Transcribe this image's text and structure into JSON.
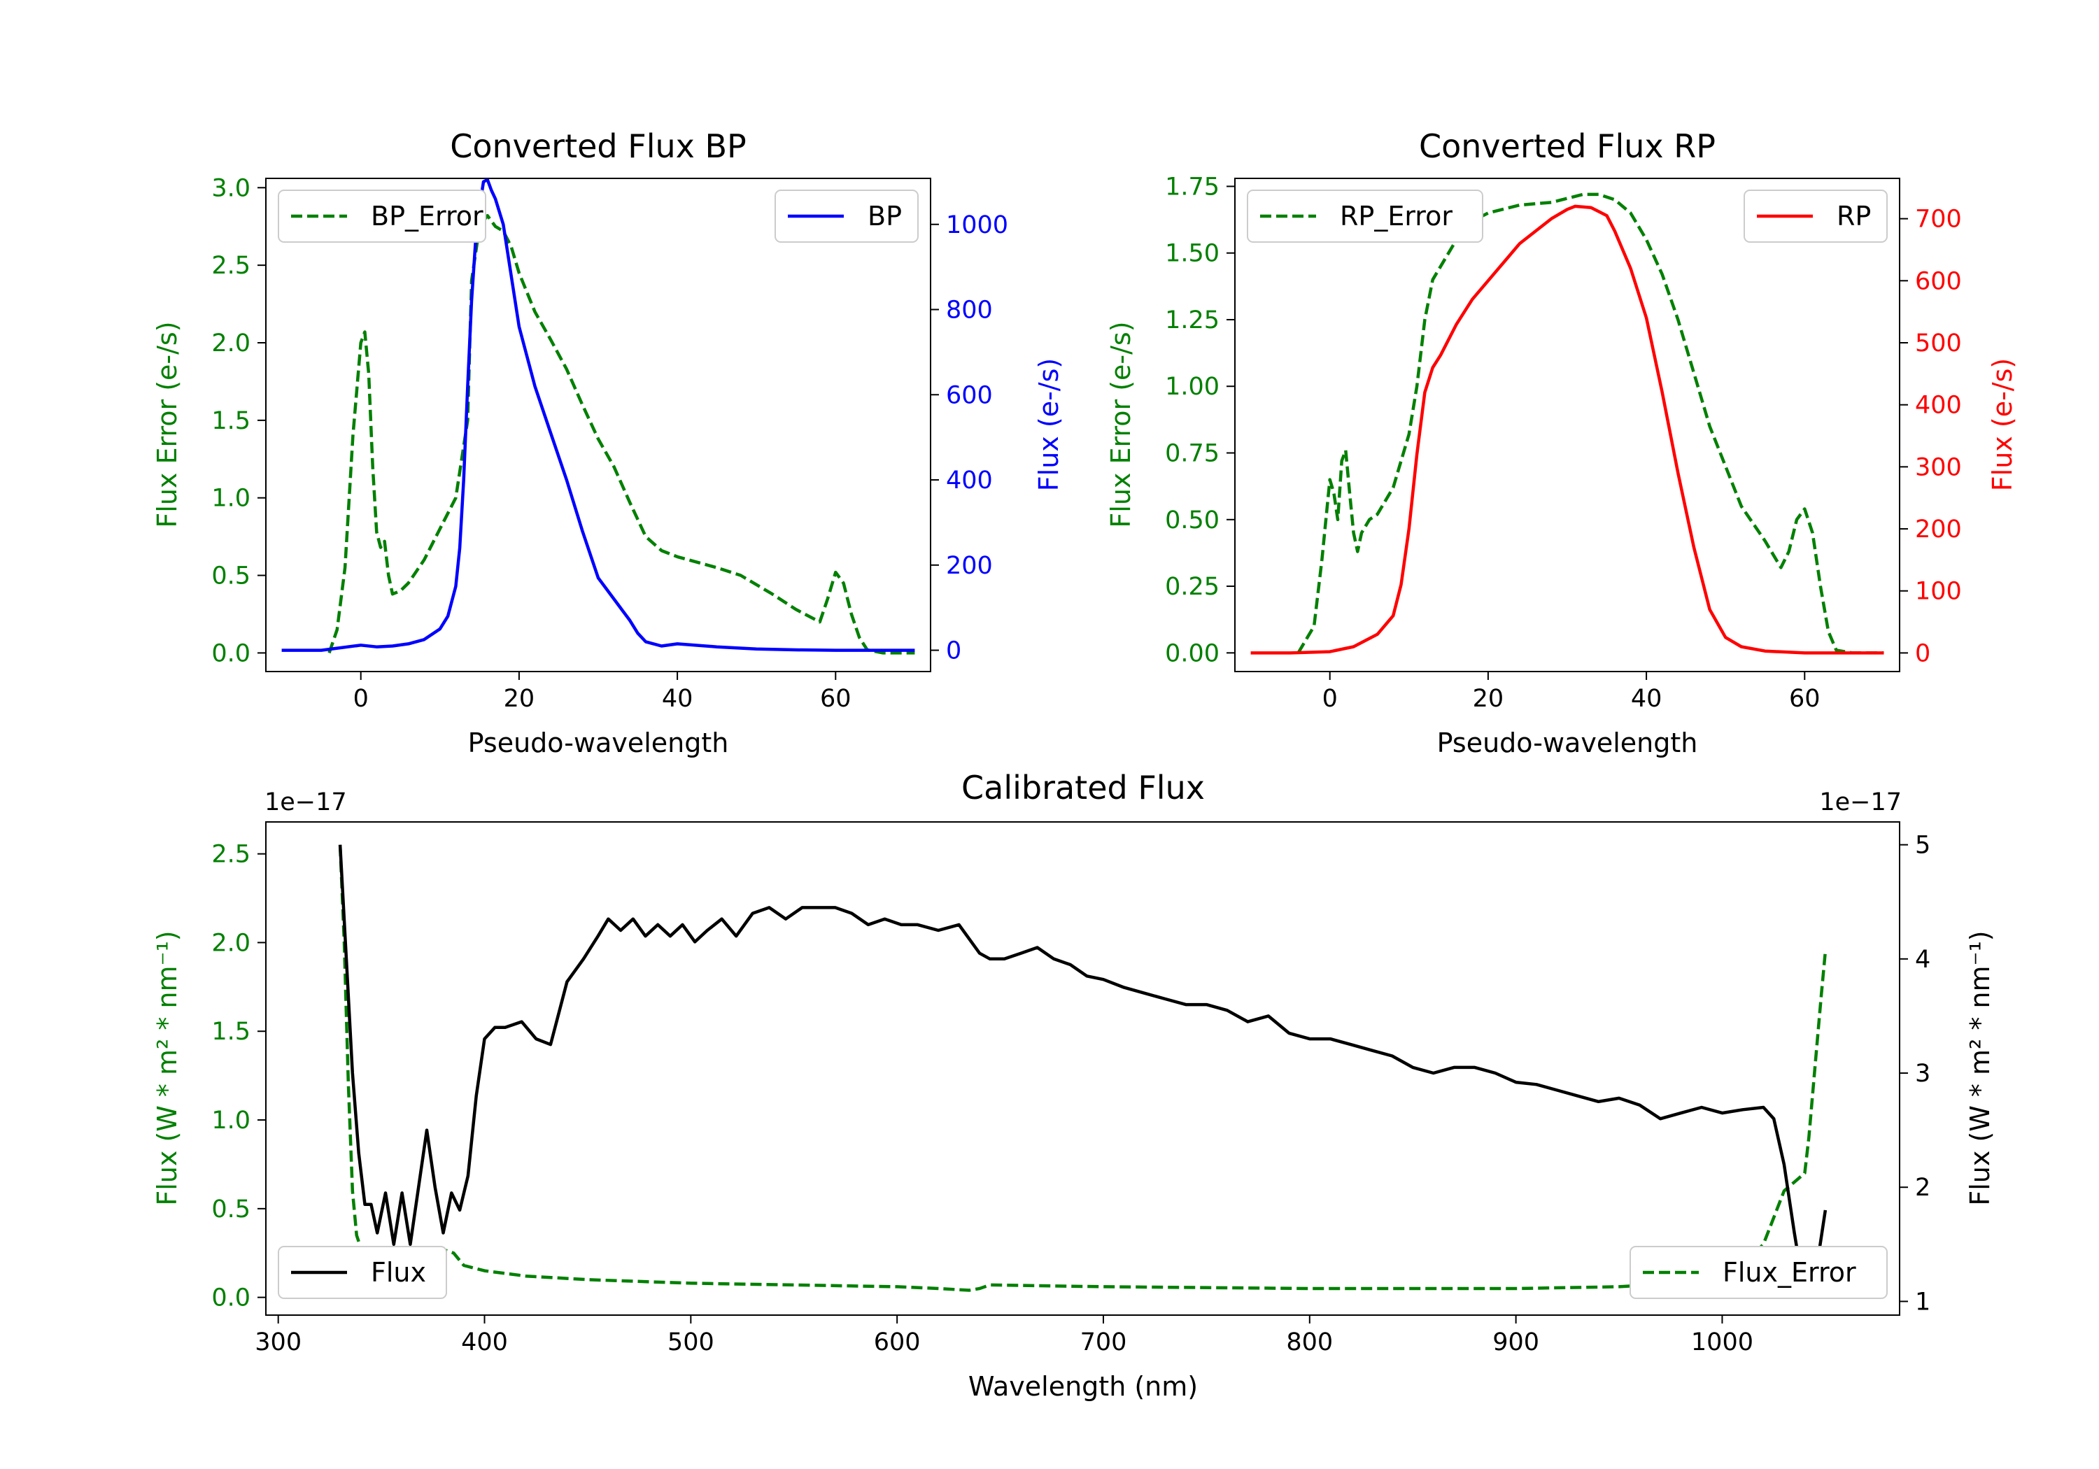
{
  "colors": {
    "bp": "#0000ff",
    "rp": "#ff0000",
    "error": "#008000",
    "flux": "#000000",
    "axis": "#000000"
  },
  "chart_data": [
    {
      "id": "bp",
      "type": "line",
      "title": "Converted Flux BP",
      "xlabel": "Pseudo-wavelength",
      "ylabel_left": "Flux Error (e-/s)",
      "ylabel_right": "Flux (e-/s)",
      "xlim": [
        -12,
        72
      ],
      "ylim_left": [
        -0.12,
        3.06
      ],
      "ylim_right": [
        -50,
        1108
      ],
      "xticks": [
        0,
        20,
        40,
        60
      ],
      "yticks_left": [
        0.0,
        0.5,
        1.0,
        1.5,
        2.0,
        2.5,
        3.0
      ],
      "yticks_right": [
        0,
        200,
        400,
        600,
        800,
        1000
      ],
      "ytick_labels_left": [
        "0.0",
        "0.5",
        "1.0",
        "1.5",
        "2.0",
        "2.5",
        "3.0"
      ],
      "series": [
        {
          "name": "BP_Error",
          "axis": "left",
          "style": "dashed",
          "color": "#008000",
          "x": [
            -4,
            -3,
            -2,
            -1,
            0,
            0.5,
            1,
            1.5,
            2,
            2.5,
            3,
            3.5,
            4,
            5,
            6,
            8,
            10,
            12,
            13.5,
            14,
            15,
            16,
            17,
            18,
            19,
            20,
            22,
            24,
            26,
            28,
            30,
            32,
            34,
            36,
            38,
            40,
            45,
            48,
            52,
            55,
            58,
            59,
            60,
            61,
            62,
            63,
            64,
            66,
            68,
            70
          ],
          "y": [
            0.0,
            0.15,
            0.55,
            1.4,
            2.0,
            2.07,
            1.8,
            1.2,
            0.78,
            0.68,
            0.72,
            0.5,
            0.38,
            0.4,
            0.45,
            0.6,
            0.8,
            1.0,
            1.5,
            2.4,
            2.75,
            2.82,
            2.75,
            2.72,
            2.62,
            2.45,
            2.2,
            2.02,
            1.83,
            1.6,
            1.38,
            1.2,
            0.97,
            0.75,
            0.66,
            0.62,
            0.55,
            0.5,
            0.38,
            0.28,
            0.2,
            0.35,
            0.52,
            0.45,
            0.25,
            0.1,
            0.02,
            0.0,
            0.0,
            0.0
          ]
        },
        {
          "name": "BP",
          "axis": "right",
          "style": "solid",
          "color": "#0000ff",
          "x": [
            -10,
            -5,
            0,
            2,
            4,
            6,
            8,
            10,
            11,
            12,
            12.5,
            13,
            13.5,
            14,
            14.5,
            15,
            15.5,
            16,
            16.5,
            17,
            18,
            19,
            20,
            22,
            24,
            26,
            28,
            30,
            32,
            34,
            35,
            36,
            38,
            40,
            45,
            50,
            55,
            60,
            65,
            70
          ],
          "y": [
            0,
            0,
            12,
            8,
            10,
            15,
            25,
            50,
            80,
            150,
            240,
            400,
            620,
            820,
            960,
            1040,
            1100,
            1105,
            1080,
            1060,
            1000,
            880,
            760,
            620,
            510,
            400,
            280,
            170,
            120,
            70,
            40,
            20,
            10,
            15,
            8,
            3,
            1,
            0,
            0,
            0
          ]
        }
      ]
    },
    {
      "id": "rp",
      "type": "line",
      "title": "Converted Flux RP",
      "xlabel": "Pseudo-wavelength",
      "ylabel_left": "Flux Error (e-/s)",
      "ylabel_right": "Flux (e-/s)",
      "xlim": [
        -12,
        72
      ],
      "ylim_left": [
        -0.07,
        1.78
      ],
      "ylim_right": [
        -30,
        765
      ],
      "xticks": [
        0,
        20,
        40,
        60
      ],
      "yticks_left": [
        0.0,
        0.25,
        0.5,
        0.75,
        1.0,
        1.25,
        1.5,
        1.75
      ],
      "yticks_right": [
        0,
        100,
        200,
        300,
        400,
        500,
        600,
        700
      ],
      "ytick_labels_left": [
        "0.00",
        "0.25",
        "0.50",
        "0.75",
        "1.00",
        "1.25",
        "1.50",
        "1.75"
      ],
      "series": [
        {
          "name": "RP_Error",
          "axis": "left",
          "style": "dashed",
          "color": "#008000",
          "x": [
            -4,
            -2,
            -1,
            0,
            0.5,
            1,
            1.5,
            2,
            2.5,
            3,
            3.5,
            4,
            5,
            6,
            8,
            10,
            11,
            12,
            13,
            14,
            16,
            18,
            20,
            24,
            28,
            32,
            34,
            36,
            38,
            40,
            42,
            44,
            46,
            48,
            52,
            55,
            57,
            58,
            59,
            60,
            61,
            62,
            63,
            64,
            66,
            70
          ],
          "y": [
            0.0,
            0.1,
            0.35,
            0.65,
            0.6,
            0.5,
            0.72,
            0.76,
            0.6,
            0.45,
            0.38,
            0.45,
            0.5,
            0.52,
            0.62,
            0.82,
            1.0,
            1.25,
            1.4,
            1.45,
            1.55,
            1.62,
            1.65,
            1.68,
            1.69,
            1.72,
            1.72,
            1.7,
            1.65,
            1.55,
            1.42,
            1.25,
            1.05,
            0.85,
            0.55,
            0.42,
            0.32,
            0.38,
            0.5,
            0.54,
            0.45,
            0.25,
            0.08,
            0.01,
            0.0,
            0.0
          ]
        },
        {
          "name": "RP",
          "axis": "right",
          "style": "solid",
          "color": "#ff0000",
          "x": [
            -10,
            -5,
            0,
            3,
            6,
            8,
            9,
            10,
            11,
            12,
            13,
            14,
            16,
            18,
            20,
            24,
            28,
            30,
            31,
            33,
            35,
            36,
            38,
            40,
            42,
            44,
            46,
            48,
            50,
            52,
            55,
            60,
            65,
            70
          ],
          "y": [
            0,
            0,
            2,
            10,
            30,
            60,
            110,
            200,
            320,
            420,
            460,
            480,
            530,
            570,
            600,
            660,
            700,
            715,
            720,
            718,
            705,
            680,
            620,
            540,
            420,
            290,
            170,
            70,
            25,
            10,
            3,
            0,
            0,
            0
          ]
        }
      ]
    },
    {
      "id": "calibrated",
      "type": "line",
      "title": "Calibrated Flux",
      "xlabel": "Wavelength (nm)",
      "ylabel_left": "Flux (W * m² * nm⁻¹)",
      "ylabel_right": "Flux (W * m² * nm⁻¹)",
      "offset_left": "1e−17",
      "offset_right": "1e−17",
      "xlim": [
        294,
        1086
      ],
      "ylim_left": [
        -0.1,
        2.68
      ],
      "ylim_right": [
        0.88,
        5.2
      ],
      "xticks": [
        300,
        400,
        500,
        600,
        700,
        800,
        900,
        1000
      ],
      "yticks_left": [
        0.0,
        0.5,
        1.0,
        1.5,
        2.0,
        2.5
      ],
      "yticks_right": [
        1,
        2,
        3,
        4,
        5
      ],
      "ytick_labels_left": [
        "0.0",
        "0.5",
        "1.0",
        "1.5",
        "2.0",
        "2.5"
      ],
      "series": [
        {
          "name": "Flux_Error",
          "axis": "left",
          "style": "dashed",
          "color": "#008000",
          "x": [
            330,
            332,
            334,
            336,
            338,
            340,
            345,
            350,
            360,
            370,
            380,
            385,
            390,
            400,
            420,
            450,
            500,
            550,
            600,
            620,
            635,
            640,
            645,
            700,
            800,
            900,
            950,
            980,
            1000,
            1010,
            1020,
            1025,
            1030,
            1035,
            1040,
            1042,
            1045,
            1048,
            1050
          ],
          "y": [
            2.55,
            2.0,
            1.2,
            0.6,
            0.35,
            0.28,
            0.25,
            0.22,
            0.22,
            0.24,
            0.27,
            0.25,
            0.18,
            0.15,
            0.12,
            0.1,
            0.08,
            0.07,
            0.06,
            0.05,
            0.04,
            0.05,
            0.07,
            0.06,
            0.05,
            0.05,
            0.06,
            0.08,
            0.12,
            0.18,
            0.3,
            0.45,
            0.6,
            0.65,
            0.7,
            0.9,
            1.3,
            1.7,
            1.95
          ]
        },
        {
          "name": "Flux",
          "axis": "right",
          "style": "solid",
          "color": "#000000",
          "x": [
            330,
            333,
            336,
            339,
            342,
            345,
            348,
            352,
            356,
            360,
            364,
            368,
            372,
            376,
            380,
            384,
            388,
            392,
            396,
            400,
            405,
            410,
            418,
            425,
            432,
            440,
            448,
            455,
            460,
            466,
            472,
            478,
            484,
            490,
            496,
            502,
            508,
            515,
            522,
            530,
            538,
            546,
            554,
            562,
            570,
            578,
            586,
            594,
            602,
            610,
            620,
            630,
            640,
            645,
            652,
            660,
            668,
            676,
            684,
            692,
            700,
            710,
            720,
            730,
            740,
            750,
            760,
            770,
            780,
            790,
            800,
            810,
            820,
            830,
            840,
            850,
            860,
            870,
            880,
            890,
            900,
            910,
            920,
            930,
            940,
            950,
            960,
            970,
            980,
            990,
            1000,
            1010,
            1020,
            1025,
            1030,
            1035,
            1040,
            1045,
            1050
          ],
          "y": [
            5.0,
            4.0,
            3.0,
            2.3,
            1.85,
            1.85,
            1.6,
            1.95,
            1.5,
            1.95,
            1.5,
            2.0,
            2.5,
            2.0,
            1.6,
            1.95,
            1.8,
            2.1,
            2.8,
            3.3,
            3.4,
            3.4,
            3.45,
            3.3,
            3.25,
            3.8,
            4.0,
            4.2,
            4.35,
            4.25,
            4.35,
            4.2,
            4.3,
            4.2,
            4.3,
            4.15,
            4.25,
            4.35,
            4.2,
            4.4,
            4.45,
            4.35,
            4.45,
            4.45,
            4.45,
            4.4,
            4.3,
            4.35,
            4.3,
            4.3,
            4.25,
            4.3,
            4.05,
            4.0,
            4.0,
            4.05,
            4.1,
            4.0,
            3.95,
            3.85,
            3.82,
            3.75,
            3.7,
            3.65,
            3.6,
            3.6,
            3.55,
            3.45,
            3.5,
            3.35,
            3.3,
            3.3,
            3.25,
            3.2,
            3.15,
            3.05,
            3.0,
            3.05,
            3.05,
            3.0,
            2.92,
            2.9,
            2.85,
            2.8,
            2.75,
            2.78,
            2.72,
            2.6,
            2.65,
            2.7,
            2.65,
            2.68,
            2.7,
            2.6,
            2.2,
            1.6,
            1.05,
            1.2,
            1.8
          ]
        }
      ]
    }
  ]
}
